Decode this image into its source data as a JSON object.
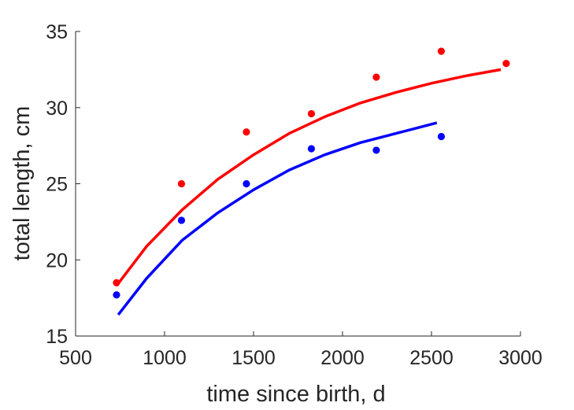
{
  "chart_data": {
    "type": "scatter",
    "title": "",
    "xlabel": "time since birth, d",
    "ylabel": "total length, cm",
    "xlim": [
      500,
      3000
    ],
    "ylim": [
      15,
      35
    ],
    "xticks": [
      500,
      1000,
      1500,
      2000,
      2500,
      3000
    ],
    "yticks": [
      15,
      20,
      25,
      30,
      35
    ],
    "grid": false,
    "series": [
      {
        "color": "#ff0000",
        "points": [
          {
            "x": 730,
            "y": 18.5
          },
          {
            "x": 1095,
            "y": 25.0
          },
          {
            "x": 1460,
            "y": 28.4
          },
          {
            "x": 1825,
            "y": 29.6
          },
          {
            "x": 2190,
            "y": 32.0
          },
          {
            "x": 2555,
            "y": 33.7
          },
          {
            "x": 2920,
            "y": 32.9
          }
        ],
        "fit": {
          "x": [
            730,
            900,
            1100,
            1300,
            1500,
            1700,
            1900,
            2100,
            2300,
            2500,
            2700,
            2890
          ],
          "y": [
            18.3,
            20.9,
            23.3,
            25.3,
            26.9,
            28.3,
            29.4,
            30.3,
            31.0,
            31.6,
            32.1,
            32.5
          ]
        }
      },
      {
        "color": "#0000ff",
        "points": [
          {
            "x": 730,
            "y": 17.7
          },
          {
            "x": 1095,
            "y": 22.6
          },
          {
            "x": 1460,
            "y": 25.0
          },
          {
            "x": 1825,
            "y": 27.3
          },
          {
            "x": 2190,
            "y": 27.2
          },
          {
            "x": 2555,
            "y": 28.1
          }
        ],
        "fit": {
          "x": [
            740,
            900,
            1100,
            1300,
            1500,
            1700,
            1900,
            2100,
            2300,
            2530
          ],
          "y": [
            16.4,
            18.8,
            21.3,
            23.1,
            24.6,
            25.9,
            26.9,
            27.7,
            28.3,
            29.0
          ]
        }
      }
    ]
  }
}
